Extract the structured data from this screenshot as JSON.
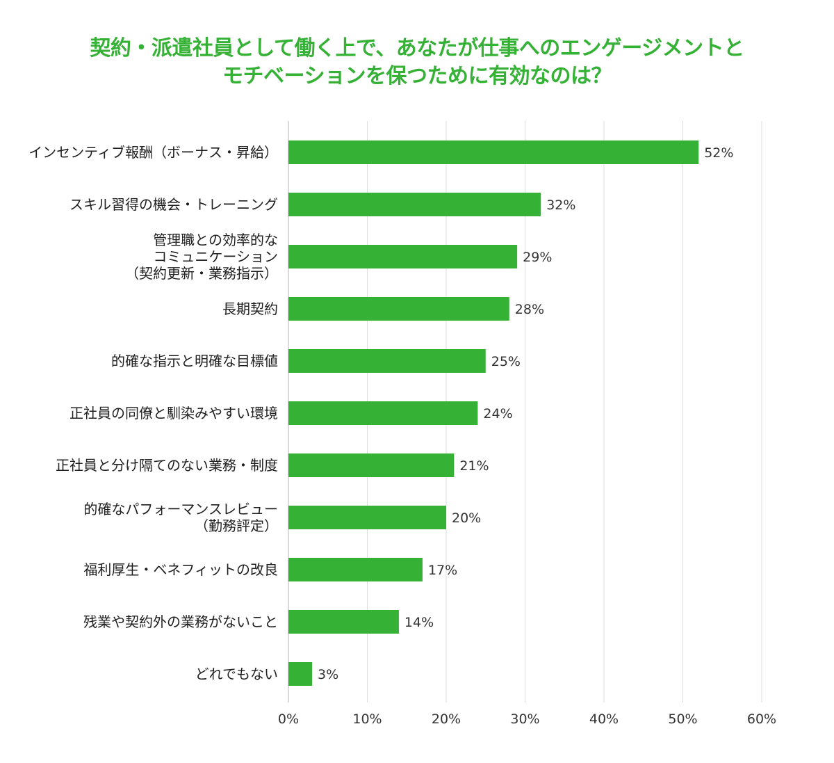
{
  "chart_data": {
    "type": "bar",
    "orientation": "horizontal",
    "title_lines": [
      "契約・派遣社員として働く上で、あなたが仕事へのエンゲージメントと",
      "モチベーションを保つために有効なのは？"
    ],
    "categories": [
      [
        "インセンティブ報酬（ボーナス・昇給）"
      ],
      [
        "スキル習得の機会・トレーニング"
      ],
      [
        "管理職との効率的な",
        "コミュニケーション",
        "（契約更新・業務指示）"
      ],
      [
        "長期契約"
      ],
      [
        "的確な指示と明確な目標値"
      ],
      [
        "正社員の同僚と馴染みやすい環境"
      ],
      [
        "正社員と分け隔てのない業務・制度"
      ],
      [
        "的確なパフォーマンスレビュー",
        "（勤務評定）"
      ],
      [
        "福利厚生・ベネフィットの改良"
      ],
      [
        "残業や契約外の業務がないこと"
      ],
      [
        "どれでもない"
      ]
    ],
    "values": [
      52,
      32,
      29,
      28,
      25,
      24,
      21,
      20,
      17,
      14,
      3
    ],
    "value_labels": [
      "52%",
      "32%",
      "29%",
      "28%",
      "25%",
      "24%",
      "21%",
      "20%",
      "17%",
      "14%",
      "3%"
    ],
    "xticks": [
      0,
      10,
      20,
      30,
      40,
      50,
      60
    ],
    "xtick_labels": [
      "0%",
      "10%",
      "20%",
      "30%",
      "40%",
      "50%",
      "60%"
    ],
    "xlim": [
      0,
      60
    ],
    "grid": true,
    "legend": "none",
    "xlabel": "",
    "ylabel": ""
  },
  "colors": {
    "bar": "#35b136",
    "title": "#35b136",
    "grid": "#dcdcdc",
    "text": "#1f1f1f"
  }
}
